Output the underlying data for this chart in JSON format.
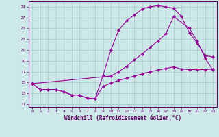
{
  "xlabel": "Windchill (Refroidissement éolien,°C)",
  "bg_color": "#cce8e8",
  "grid_color": "#aacccc",
  "line_color": "#990099",
  "xlim": [
    -0.5,
    23.5
  ],
  "ylim": [
    10.5,
    30.0
  ],
  "yticks": [
    11,
    13,
    15,
    17,
    19,
    21,
    23,
    25,
    27,
    29
  ],
  "xticks": [
    0,
    1,
    2,
    3,
    4,
    5,
    6,
    7,
    8,
    9,
    10,
    11,
    12,
    13,
    14,
    15,
    16,
    17,
    18,
    19,
    20,
    21,
    22,
    23
  ],
  "line1_x": [
    0,
    1,
    2,
    3,
    4,
    5,
    6,
    7,
    8,
    9,
    10,
    11,
    12,
    13,
    14,
    15,
    16,
    17,
    18,
    19,
    20,
    21,
    22,
    23
  ],
  "line1_y": [
    14.8,
    13.7,
    13.7,
    13.7,
    13.3,
    12.7,
    12.7,
    12.1,
    12.0,
    16.3,
    21.0,
    24.7,
    26.4,
    27.5,
    28.6,
    29.0,
    29.2,
    29.0,
    28.7,
    27.2,
    24.2,
    22.3,
    20.0,
    19.7
  ],
  "line2_x": [
    0,
    10,
    11,
    12,
    13,
    14,
    15,
    16,
    17,
    18,
    20,
    21,
    22,
    23
  ],
  "line2_y": [
    14.8,
    16.2,
    17.0,
    18.0,
    19.2,
    20.3,
    21.5,
    22.7,
    24.0,
    27.2,
    25.0,
    22.7,
    19.5,
    17.3
  ],
  "line3_x": [
    0,
    1,
    2,
    3,
    4,
    5,
    6,
    7,
    8,
    9,
    10,
    11,
    12,
    13,
    14,
    15,
    16,
    17,
    18,
    19,
    20,
    21,
    22,
    23
  ],
  "line3_y": [
    14.8,
    13.7,
    13.7,
    13.7,
    13.3,
    12.7,
    12.7,
    12.1,
    12.0,
    14.3,
    14.9,
    15.4,
    15.8,
    16.2,
    16.6,
    17.0,
    17.3,
    17.6,
    17.9,
    17.5,
    17.4,
    17.4,
    17.4,
    17.5
  ]
}
